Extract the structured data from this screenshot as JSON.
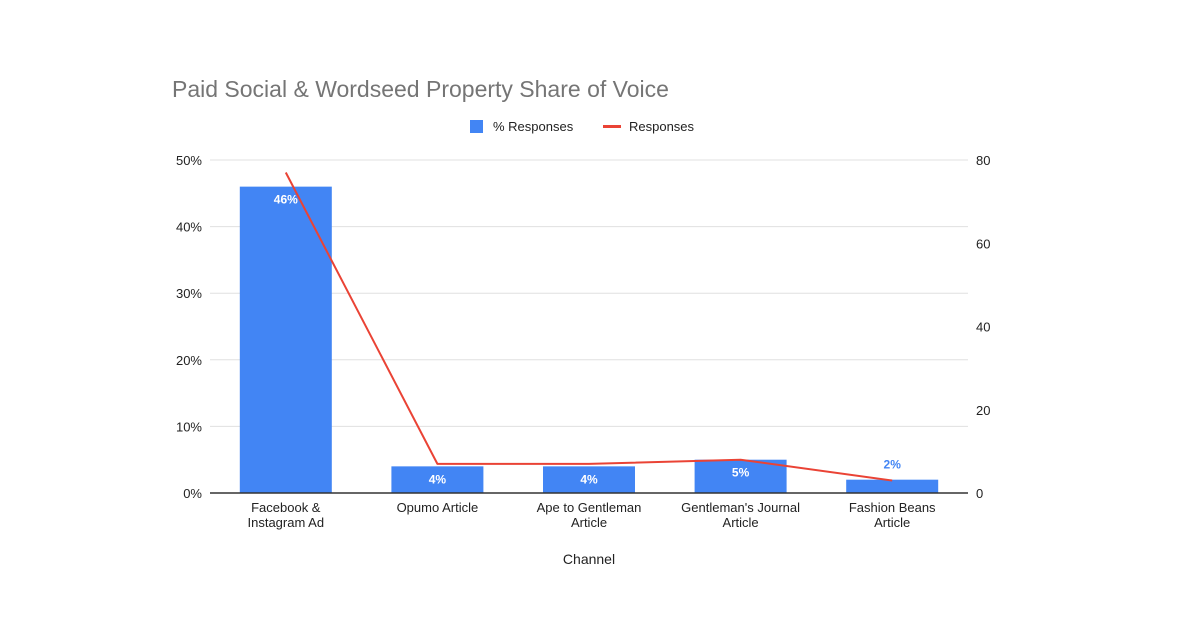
{
  "chart_data": {
    "type": "bar",
    "title": "Paid Social & Wordseed Property Share of Voice",
    "xlabel": "Channel",
    "categories": [
      [
        "Facebook &",
        "Instagram Ad"
      ],
      [
        "Opumo Article"
      ],
      [
        "Ape to Gentleman",
        "Article"
      ],
      [
        "Gentleman's Journal",
        "Article"
      ],
      [
        "Fashion Beans",
        "Article"
      ]
    ],
    "series": [
      {
        "name": "% Responses",
        "type": "bar",
        "axis": "left",
        "values": [
          46,
          4,
          4,
          5,
          2
        ],
        "labels": [
          "46%",
          "4%",
          "4%",
          "5%",
          "2%"
        ],
        "color": "#4285f4"
      },
      {
        "name": "Responses",
        "type": "line",
        "axis": "right",
        "values": [
          77,
          7,
          7,
          8,
          3
        ],
        "color": "#ea4335"
      }
    ],
    "y_left": {
      "ticks": [
        "0%",
        "10%",
        "20%",
        "30%",
        "40%",
        "50%"
      ],
      "range": [
        0,
        50
      ]
    },
    "y_right": {
      "ticks": [
        "0",
        "20",
        "40",
        "60",
        "80"
      ],
      "range": [
        0,
        80
      ]
    },
    "legend_position": "top",
    "grid": true,
    "colors": {
      "gridline": "#e0e0e0",
      "baseline": "#333333",
      "title": "#757575",
      "outside_label": "#4285f4",
      "inside_label": "#ffffff"
    }
  }
}
